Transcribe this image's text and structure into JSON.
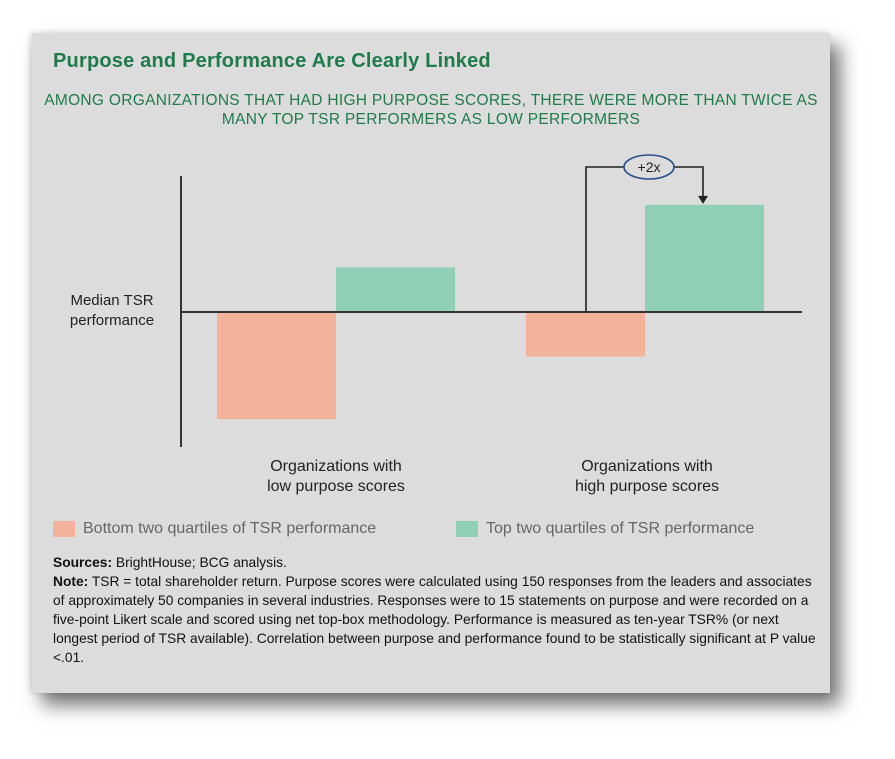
{
  "card": {
    "title": "Purpose and Performance Are Clearly Linked",
    "subtitle": "AMONG ORGANIZATIONS THAT HAD HIGH PURPOSE SCORES, THERE WERE MORE THAN TWICE AS MANY TOP TSR PERFORMERS AS LOW PERFORMERS"
  },
  "chart_data": {
    "type": "bar",
    "categories": [
      "Organizations with low purpose scores",
      "Organizations with high purpose scores"
    ],
    "category_lines": [
      [
        "Organizations with",
        "low purpose scores"
      ],
      [
        "Organizations with",
        "high purpose scores"
      ]
    ],
    "baseline_label": "Median TSR performance",
    "series": [
      {
        "name": "Bottom two quartiles of TSR performance",
        "color": "#f2b39a",
        "values": [
          -2.4,
          -1.0
        ]
      },
      {
        "name": "Top two quartiles of TSR performance",
        "color": "#8ecfb5",
        "values": [
          1.0,
          2.4
        ]
      }
    ],
    "ylim": [
      -2.8,
      2.8
    ],
    "annotation": {
      "text": "+2x",
      "target_series": 1,
      "target_category": 1
    }
  },
  "notes": {
    "sources_label": "Sources:",
    "sources_text": " BrightHouse; BCG analysis.",
    "note_label": "Note:",
    "note_text": " TSR = total shareholder return. Purpose scores were calculated using 150 responses from the leaders and associates of approximately 50 companies in several industries. Responses were to 15 statements on purpose and were recorded on a five-point Likert scale and scored using net top-box methodology. Performance is measured as ten-year TSR% (or next longest period of TSR available). Correlation between purpose and performance found to be statistically significant at P value <.01."
  }
}
